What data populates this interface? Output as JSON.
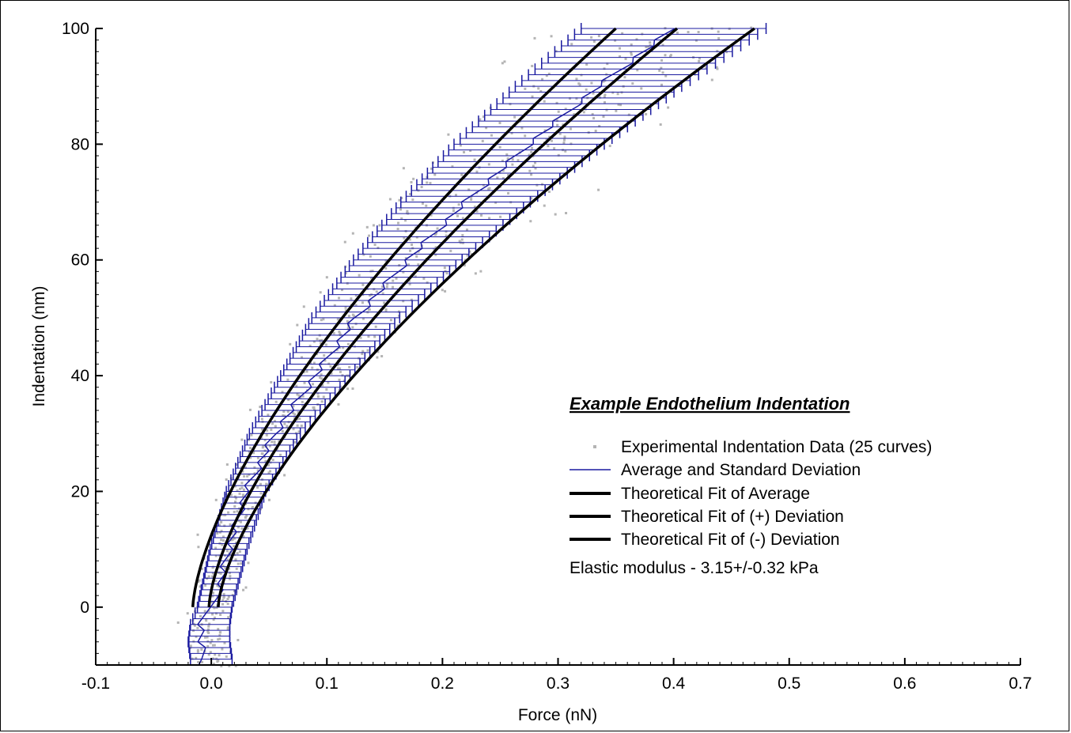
{
  "chart_data": {
    "type": "scatter",
    "title": "Example Endothelium Indentation",
    "xlabel": "Force (nN)",
    "ylabel": "Indentation (nm)",
    "xlim": [
      -0.1,
      0.7
    ],
    "ylim": [
      -10,
      100
    ],
    "x_ticks": [
      "-0.1",
      "0.0",
      "0.1",
      "0.2",
      "0.3",
      "0.4",
      "0.5",
      "0.6",
      "0.7"
    ],
    "y_ticks": [
      "0",
      "20",
      "40",
      "60",
      "80",
      "100"
    ],
    "grid": false,
    "legend_position": "right-middle",
    "colors": {
      "scatter": "#b4b4b4",
      "average": "#1a1aa0",
      "fit": "#000000"
    },
    "legend": [
      {
        "label": "Experimental Indentation Data (25 curves)",
        "marker": "dot"
      },
      {
        "label": "Average and Standard Deviation",
        "marker": "thin-line"
      },
      {
        "label": "Theoretical Fit of Average",
        "marker": "thick-line"
      },
      {
        "label": "Theoretical Fit of (+) Deviation",
        "marker": "thick-line"
      },
      {
        "label": "Theoretical Fit of (-) Deviation",
        "marker": "thick-line"
      }
    ],
    "annotation": "Elastic modulus - 3.15+/-0.32 kPa",
    "average": {
      "indentation": [
        -9,
        -6,
        -3,
        0,
        10,
        20,
        30,
        40,
        50,
        60,
        70,
        80,
        90,
        100
      ],
      "force": [
        0.0,
        -0.002,
        -0.001,
        0.003,
        0.015,
        0.03,
        0.055,
        0.09,
        0.125,
        0.17,
        0.22,
        0.275,
        0.335,
        0.4
      ],
      "std": [
        0.018,
        0.018,
        0.017,
        0.015,
        0.016,
        0.017,
        0.022,
        0.03,
        0.038,
        0.047,
        0.056,
        0.065,
        0.072,
        0.08
      ]
    },
    "fits": [
      {
        "name": "Theoretical Fit of Average",
        "x0": -0.002,
        "a": 0.000405
      },
      {
        "name": "Theoretical Fit of (+) Deviation",
        "x0": -0.016,
        "a": 0.000366
      },
      {
        "name": "Theoretical Fit of (-) Deviation",
        "x0": 0.006,
        "a": 0.000464
      }
    ]
  }
}
